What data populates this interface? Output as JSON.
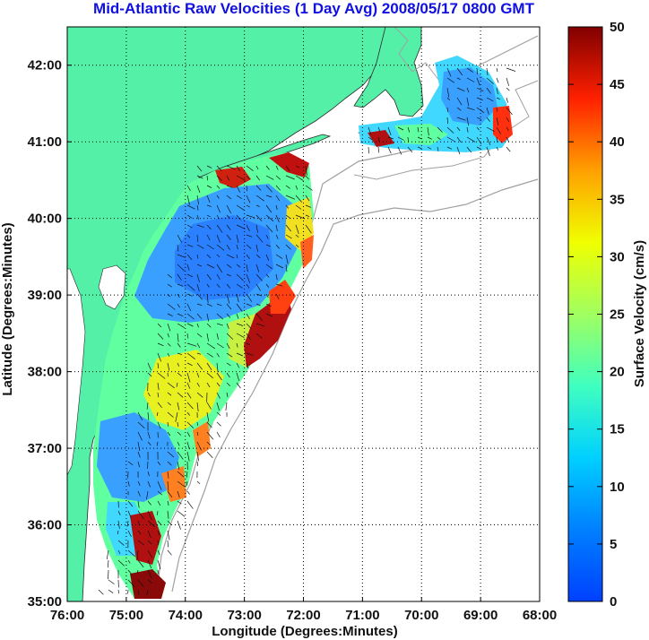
{
  "title": "Mid-Atlantic Raw Velocities (1 Day Avg) 2008/05/17 0800 GMT",
  "xlabel": "Longitude (Degrees:Minutes)",
  "ylabel": "Latitude (Degrees:Minutes)",
  "x_ticks": [
    "76:00",
    "75:00",
    "74:00",
    "73:00",
    "72:00",
    "71:00",
    "70:00",
    "69:00",
    "68:00"
  ],
  "y_ticks": [
    "42:00",
    "41:00",
    "40:00",
    "39:00",
    "38:00",
    "37:00",
    "36:00",
    "35:00"
  ],
  "colorbar": {
    "label": "Surface Velocity (cm/s)",
    "ticks": [
      "50",
      "45",
      "40",
      "35",
      "30",
      "25",
      "20",
      "15",
      "10",
      "5",
      "0"
    ],
    "range": [
      0,
      50
    ],
    "colormap": "jet"
  },
  "colors": {
    "title": "#1010e0",
    "land": "#55f0a8",
    "grid": "#000000",
    "bathymetry": "#a0a0a0"
  },
  "map": {
    "lon_range": [
      -76,
      -68
    ],
    "lat_range": [
      35,
      42.5
    ],
    "grid": "dotted"
  }
}
